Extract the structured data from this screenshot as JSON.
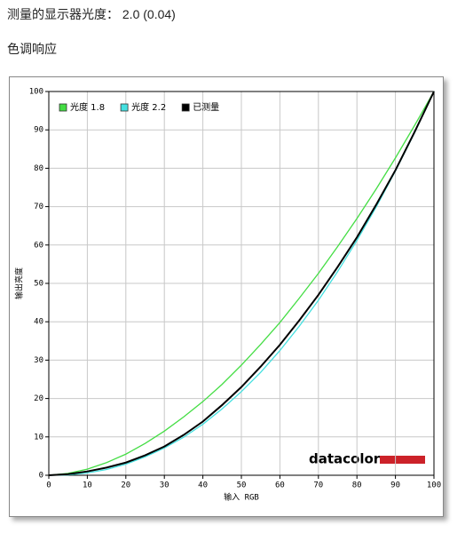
{
  "header": {
    "text": "测量的显示器光度： 2.0 (0.04)"
  },
  "section_title": "色调响应",
  "chart_data": {
    "type": "line",
    "xlabel": "输入 RGB",
    "ylabel": "输出亮度",
    "logo": "datacolor",
    "x": [
      0,
      5,
      10,
      15,
      20,
      25,
      30,
      35,
      40,
      45,
      50,
      55,
      60,
      65,
      70,
      75,
      80,
      85,
      90,
      95,
      100
    ],
    "series": [
      {
        "name": "光度 1.8",
        "color": "#44dd44",
        "values": [
          0,
          0.5,
          1.6,
          3.3,
          5.5,
          8.3,
          11.5,
          15.2,
          19.2,
          23.7,
          28.7,
          34.1,
          39.8,
          46.1,
          52.6,
          59.6,
          66.9,
          74.6,
          82.7,
          91.2,
          100
        ]
      },
      {
        "name": "光度 2.2",
        "color": "#44e0e0",
        "values": [
          0,
          0.1,
          0.6,
          1.5,
          2.9,
          4.8,
          7.1,
          9.9,
          13.3,
          17.3,
          21.8,
          26.8,
          32.5,
          38.8,
          45.6,
          53.1,
          61.2,
          69.9,
          79.3,
          89.3,
          100
        ]
      },
      {
        "name": "已测量",
        "color": "#000000",
        "values": [
          0,
          0.3,
          1.0,
          2.0,
          3.3,
          5.2,
          7.5,
          10.5,
          14,
          18.3,
          23,
          28.3,
          34,
          40.3,
          47,
          54.3,
          62,
          70.5,
          79.5,
          89.5,
          100
        ]
      }
    ],
    "xlim": [
      0,
      100
    ],
    "ylim": [
      0,
      100
    ],
    "xticks": [
      0,
      10,
      20,
      30,
      40,
      50,
      60,
      70,
      80,
      90,
      100
    ],
    "yticks": [
      0,
      10,
      20,
      30,
      40,
      50,
      60,
      70,
      80,
      90,
      100
    ],
    "grid": true,
    "legend": "top-left"
  }
}
